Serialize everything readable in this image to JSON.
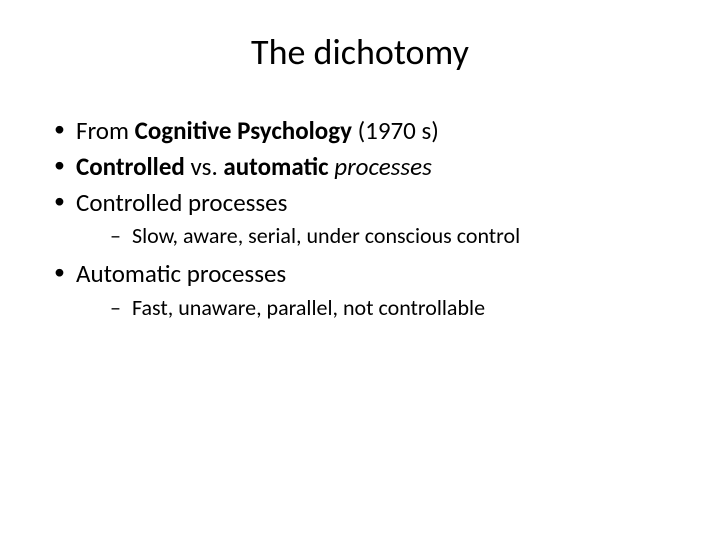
{
  "title": "The dichotomy",
  "bullets": {
    "b1_prefix": "From ",
    "b1_bold": "Cognitive Psychology ",
    "b1_suffix": " (1970 s)",
    "b2_bold1": "Controlled ",
    "b2_mid": "vs. ",
    "b2_bold2": "automatic ",
    "b2_italic": "processes",
    "b3": "Controlled processes",
    "b3_sub": "Slow, aware, serial, under conscious control",
    "b4": "Automatic processes",
    "b4_sub": "Fast, unaware, parallel, not controllable"
  },
  "style": {
    "background_color": "#ffffff",
    "text_color": "#000000",
    "title_fontsize": 36,
    "body_fontsize": 25,
    "sub_fontsize": 22
  }
}
